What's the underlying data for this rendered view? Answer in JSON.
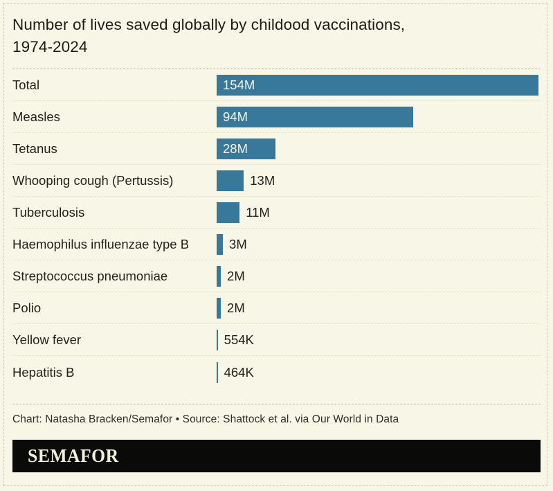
{
  "chart_data": {
    "type": "bar",
    "orientation": "horizontal",
    "title": "Number of lives saved globally by childood vaccinations, 1974-2024",
    "title_lines": {
      "line1": "Number of lives saved globally by childood vaccinations,",
      "line2": "1974-2024"
    },
    "categories": [
      "Total",
      "Measles",
      "Tetanus",
      "Whooping cough (Pertussis)",
      "Tuberculosis",
      "Haemophilus influenzae type B",
      "Streptococcus pneumoniae",
      "Polio",
      "Yellow fever",
      "Hepatitis B"
    ],
    "values_millions": [
      154,
      94,
      28,
      13,
      11,
      3,
      2,
      2,
      0.554,
      0.464
    ],
    "value_labels": [
      "154M",
      "94M",
      "28M",
      "13M",
      "11M",
      "3M",
      "2M",
      "2M",
      "554K",
      "464K"
    ],
    "label_inside_bar": [
      true,
      true,
      true,
      false,
      false,
      false,
      false,
      false,
      false,
      false
    ],
    "xlim": [
      0,
      154
    ],
    "grid": false,
    "legend": false,
    "bar_color": "#38799b"
  },
  "footer": {
    "credit": "Chart: Natasha Bracken/Semafor • Source: Shattock et al. via Our World in Data",
    "logo_text": "SEMAFOR"
  },
  "colors": {
    "background": "#f8f6e7",
    "bar": "#38799b",
    "bar_value_text": "#f6f3e2",
    "text": "#22221c",
    "logo_background": "#0a0a08",
    "logo_text": "#f2efdb"
  }
}
